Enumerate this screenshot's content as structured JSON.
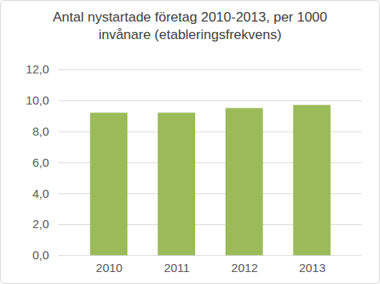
{
  "chart_data": {
    "type": "bar",
    "title": "Antal nystartade företag 2010-2013, per 1000 invånare (etableringsfrekvens)",
    "categories": [
      "2010",
      "2011",
      "2012",
      "2013"
    ],
    "values": [
      9.2,
      9.2,
      9.5,
      9.7
    ],
    "color": "#9bbb59",
    "ylim": [
      0,
      12
    ],
    "yticks": [
      {
        "value": 0,
        "label": "0,0"
      },
      {
        "value": 2,
        "label": "2,0"
      },
      {
        "value": 4,
        "label": "4,0"
      },
      {
        "value": 6,
        "label": "6,0"
      },
      {
        "value": 8,
        "label": "8,0"
      },
      {
        "value": 10,
        "label": "10,0"
      },
      {
        "value": 12,
        "label": "12,0"
      }
    ],
    "grid": true
  }
}
